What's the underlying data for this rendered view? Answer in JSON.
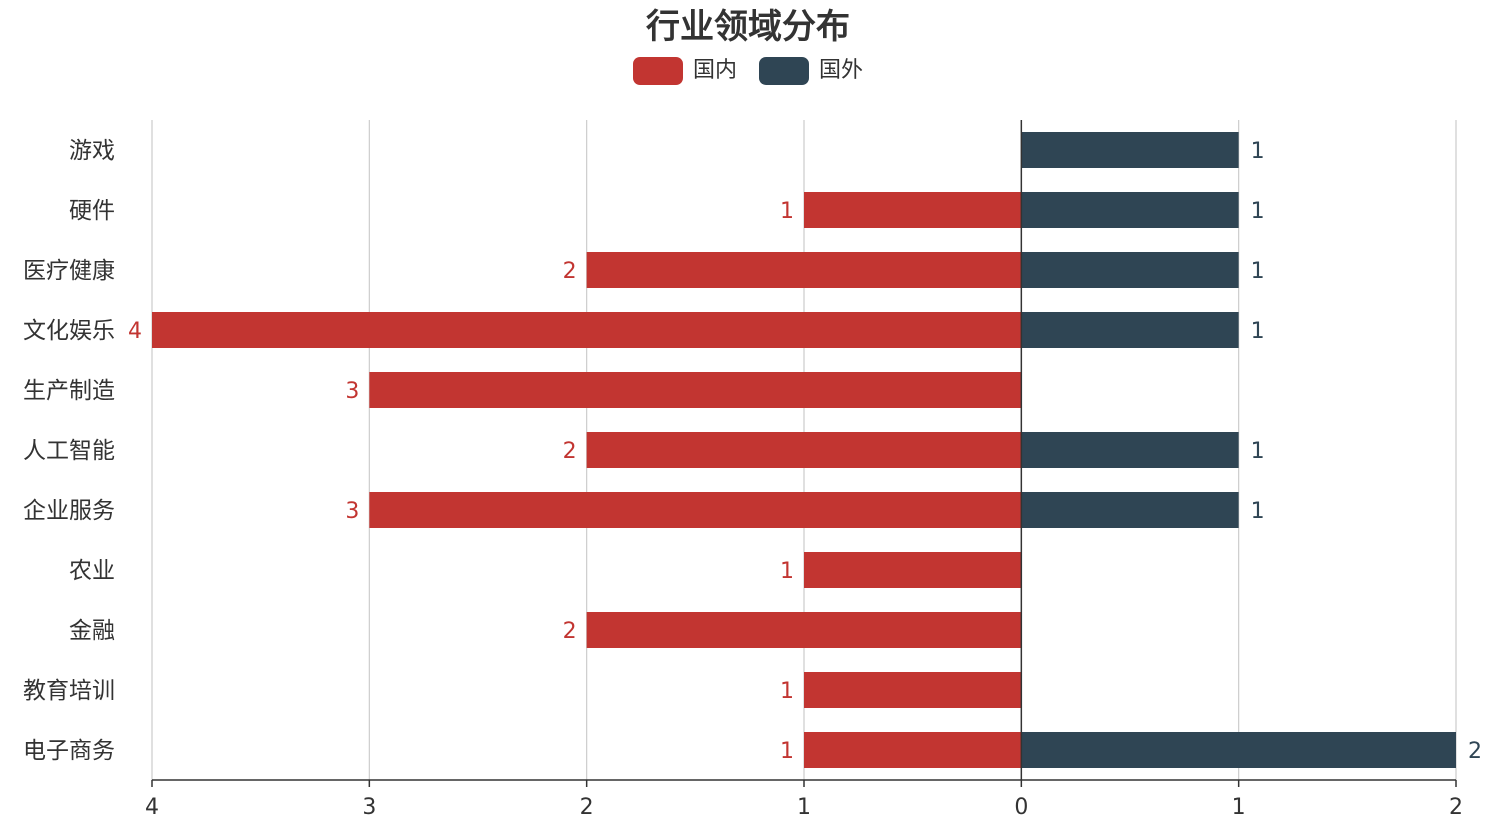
{
  "chart_data": {
    "type": "bar",
    "orientation": "horizontal-diverging",
    "title": "行业领域分布",
    "categories": [
      "游戏",
      "硬件",
      "医疗健康",
      "文化娱乐",
      "生产制造",
      "人工智能",
      "企业服务",
      "农业",
      "金融",
      "教育培训",
      "电子商务"
    ],
    "series": [
      {
        "name": "国内",
        "color": "#c23531",
        "direction": "left",
        "values": [
          null,
          1,
          2,
          4,
          3,
          2,
          3,
          1,
          2,
          1,
          1
        ]
      },
      {
        "name": "国外",
        "color": "#2f4554",
        "direction": "right",
        "values": [
          1,
          1,
          1,
          1,
          null,
          1,
          1,
          null,
          null,
          null,
          2
        ]
      }
    ],
    "xlim": [
      -4,
      2
    ],
    "x_ticks": [
      {
        "value": -4,
        "label": "4"
      },
      {
        "value": -3,
        "label": "3"
      },
      {
        "value": -2,
        "label": "2"
      },
      {
        "value": -1,
        "label": "1"
      },
      {
        "value": 0,
        "label": "0"
      },
      {
        "value": 1,
        "label": "1"
      },
      {
        "value": 2,
        "label": "2"
      }
    ],
    "grid": true,
    "legend_position": "top-center",
    "data_labels": true
  }
}
